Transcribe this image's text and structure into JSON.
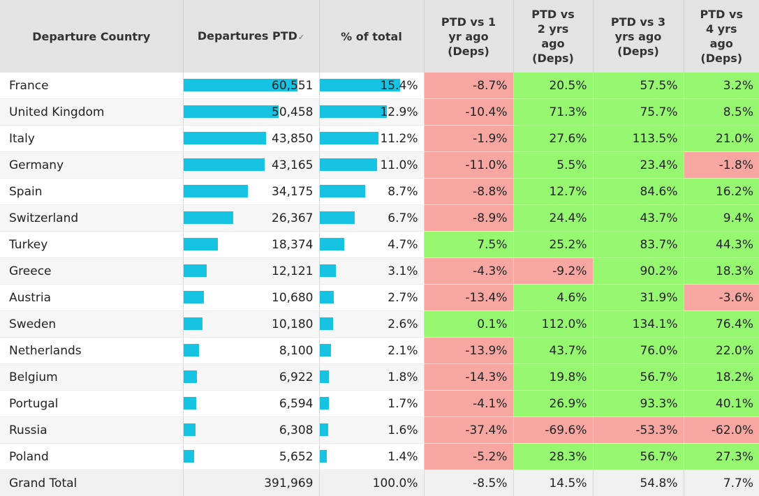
{
  "headers": {
    "country": "Departure Country",
    "departures": "Departures PTD",
    "pct_total": "% of total",
    "vs1_lines": [
      "PTD vs 1",
      "yr ago",
      "(Deps)"
    ],
    "vs2_lines": [
      "PTD vs",
      "2 yrs",
      "ago",
      "(Deps)"
    ],
    "vs3_lines": [
      "PTD vs 3",
      "yrs ago",
      "(Deps)"
    ],
    "vs4_lines": [
      "PTD vs",
      "4 yrs",
      "ago",
      "(Deps)"
    ]
  },
  "colors": {
    "bar": "#16c3e3",
    "negative": "#f7a6a1",
    "positive": "#96f770"
  },
  "max_departures": 60551,
  "max_pct": 15.4,
  "rows": [
    {
      "country": "France",
      "departures": "60,551",
      "dep_value": 60551,
      "pct": "15.4%",
      "pct_value": 15.4,
      "vs1": "-8.7%",
      "vs2": "20.5%",
      "vs3": "57.5%",
      "vs4": "3.2%"
    },
    {
      "country": "United Kingdom",
      "departures": "50,458",
      "dep_value": 50458,
      "pct": "12.9%",
      "pct_value": 12.9,
      "vs1": "-10.4%",
      "vs2": "71.3%",
      "vs3": "75.7%",
      "vs4": "8.5%"
    },
    {
      "country": "Italy",
      "departures": "43,850",
      "dep_value": 43850,
      "pct": "11.2%",
      "pct_value": 11.2,
      "vs1": "-1.9%",
      "vs2": "27.6%",
      "vs3": "113.5%",
      "vs4": "21.0%"
    },
    {
      "country": "Germany",
      "departures": "43,165",
      "dep_value": 43165,
      "pct": "11.0%",
      "pct_value": 11.0,
      "vs1": "-11.0%",
      "vs2": "5.5%",
      "vs3": "23.4%",
      "vs4": "-1.8%"
    },
    {
      "country": "Spain",
      "departures": "34,175",
      "dep_value": 34175,
      "pct": "8.7%",
      "pct_value": 8.7,
      "vs1": "-8.8%",
      "vs2": "12.7%",
      "vs3": "84.6%",
      "vs4": "16.2%"
    },
    {
      "country": "Switzerland",
      "departures": "26,367",
      "dep_value": 26367,
      "pct": "6.7%",
      "pct_value": 6.7,
      "vs1": "-8.9%",
      "vs2": "24.4%",
      "vs3": "43.7%",
      "vs4": "9.4%"
    },
    {
      "country": "Turkey",
      "departures": "18,374",
      "dep_value": 18374,
      "pct": "4.7%",
      "pct_value": 4.7,
      "vs1": "7.5%",
      "vs2": "25.2%",
      "vs3": "83.7%",
      "vs4": "44.3%"
    },
    {
      "country": "Greece",
      "departures": "12,121",
      "dep_value": 12121,
      "pct": "3.1%",
      "pct_value": 3.1,
      "vs1": "-4.3%",
      "vs2": "-9.2%",
      "vs3": "90.2%",
      "vs4": "18.3%"
    },
    {
      "country": "Austria",
      "departures": "10,680",
      "dep_value": 10680,
      "pct": "2.7%",
      "pct_value": 2.7,
      "vs1": "-13.4%",
      "vs2": "4.6%",
      "vs3": "31.9%",
      "vs4": "-3.6%"
    },
    {
      "country": "Sweden",
      "departures": "10,180",
      "dep_value": 10180,
      "pct": "2.6%",
      "pct_value": 2.6,
      "vs1": "0.1%",
      "vs2": "112.0%",
      "vs3": "134.1%",
      "vs4": "76.4%"
    },
    {
      "country": "Netherlands",
      "departures": "8,100",
      "dep_value": 8100,
      "pct": "2.1%",
      "pct_value": 2.1,
      "vs1": "-13.9%",
      "vs2": "43.7%",
      "vs3": "76.0%",
      "vs4": "22.0%"
    },
    {
      "country": "Belgium",
      "departures": "6,922",
      "dep_value": 6922,
      "pct": "1.8%",
      "pct_value": 1.8,
      "vs1": "-14.3%",
      "vs2": "19.8%",
      "vs3": "56.7%",
      "vs4": "18.2%"
    },
    {
      "country": "Portugal",
      "departures": "6,594",
      "dep_value": 6594,
      "pct": "1.7%",
      "pct_value": 1.7,
      "vs1": "-4.1%",
      "vs2": "26.9%",
      "vs3": "93.3%",
      "vs4": "40.1%"
    },
    {
      "country": "Russia",
      "departures": "6,308",
      "dep_value": 6308,
      "pct": "1.6%",
      "pct_value": 1.6,
      "vs1": "-37.4%",
      "vs2": "-69.6%",
      "vs3": "-53.3%",
      "vs4": "-62.0%"
    },
    {
      "country": "Poland",
      "departures": "5,652",
      "dep_value": 5652,
      "pct": "1.4%",
      "pct_value": 1.4,
      "vs1": "-5.2%",
      "vs2": "28.3%",
      "vs3": "56.7%",
      "vs4": "27.3%"
    }
  ],
  "total": {
    "country": "Grand Total",
    "departures": "391,969",
    "pct": "100.0%",
    "vs1": "-8.5%",
    "vs2": "14.5%",
    "vs3": "54.8%",
    "vs4": "7.7%"
  }
}
